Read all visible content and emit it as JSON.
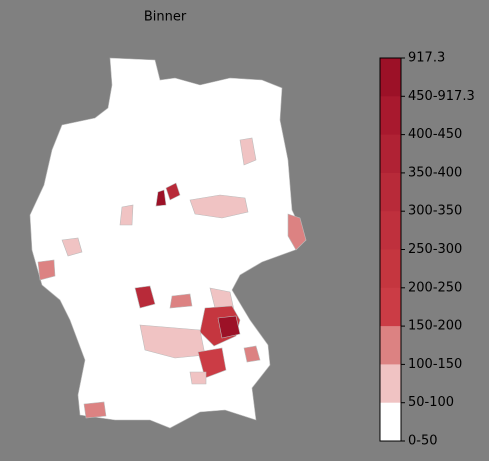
{
  "title": "Binner",
  "colorbar": {
    "labels": [
      "917.3",
      "450-917.3",
      "400-450",
      "350-400",
      "300-350",
      "250-300",
      "200-250",
      "150-200",
      "100-150",
      "50-100",
      "0-50"
    ],
    "colors": [
      "#9c1127",
      "#a8192e",
      "#b02234",
      "#b82a39",
      "#bf303d",
      "#c5363f",
      "#cb3c45",
      "#dc8282",
      "#f0c3c3",
      "#ffffff"
    ]
  }
}
